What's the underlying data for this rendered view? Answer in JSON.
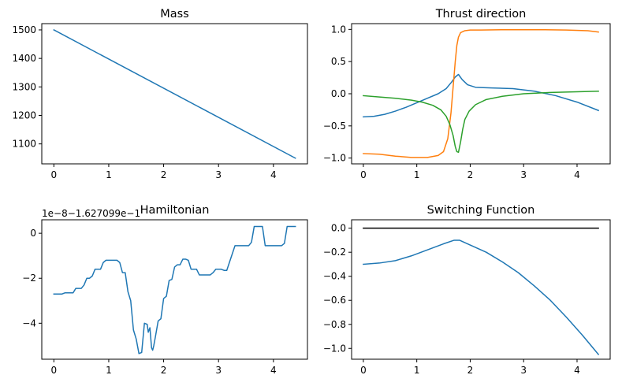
{
  "figure": {
    "background": "#ffffff"
  },
  "chart_data": [
    {
      "id": "mass",
      "type": "line",
      "title": "Mass",
      "xlabel": "",
      "ylabel": "",
      "xlim": [
        -0.22,
        4.62
      ],
      "ylim": [
        1030,
        1522
      ],
      "xticks": [
        0,
        1,
        2,
        3,
        4
      ],
      "xtick_labels": [
        "0",
        "1",
        "2",
        "3",
        "4"
      ],
      "yticks": [
        1100,
        1200,
        1300,
        1400,
        1500
      ],
      "ytick_labels": [
        "1100",
        "1200",
        "1300",
        "1400",
        "1500"
      ],
      "grid": false,
      "series": [
        {
          "color": "#1f77b4",
          "x": [
            0,
            4.4
          ],
          "y": [
            1500,
            1050
          ]
        }
      ]
    },
    {
      "id": "thrust",
      "type": "line",
      "title": "Thrust direction",
      "xlabel": "",
      "ylabel": "",
      "xlim": [
        -0.22,
        4.62
      ],
      "ylim": [
        -1.09,
        1.09
      ],
      "xticks": [
        0,
        1,
        2,
        3,
        4
      ],
      "xtick_labels": [
        "0",
        "1",
        "2",
        "3",
        "4"
      ],
      "yticks": [
        -1.0,
        -0.5,
        0.0,
        0.5,
        1.0
      ],
      "ytick_labels": [
        "−1.0",
        "−0.5",
        "0.0",
        "0.5",
        "1.0"
      ],
      "grid": false,
      "series": [
        {
          "color": "#1f77b4",
          "x": [
            0,
            0.2,
            0.4,
            0.6,
            0.8,
            1.0,
            1.2,
            1.4,
            1.55,
            1.65,
            1.72,
            1.78,
            1.85,
            1.95,
            2.1,
            2.4,
            2.8,
            3.2,
            3.6,
            4.0,
            4.4
          ],
          "y": [
            -0.36,
            -0.35,
            -0.32,
            -0.27,
            -0.21,
            -0.14,
            -0.07,
            0.0,
            0.08,
            0.18,
            0.26,
            0.3,
            0.22,
            0.14,
            0.1,
            0.09,
            0.08,
            0.04,
            -0.03,
            -0.13,
            -0.26
          ]
        },
        {
          "color": "#ff7f0e",
          "x": [
            0,
            0.3,
            0.6,
            0.9,
            1.2,
            1.4,
            1.5,
            1.58,
            1.64,
            1.68,
            1.72,
            1.75,
            1.78,
            1.82,
            1.9,
            2.0,
            2.2,
            2.6,
            3.0,
            3.4,
            3.8,
            4.2,
            4.4
          ],
          "y": [
            -0.93,
            -0.94,
            -0.97,
            -0.99,
            -0.99,
            -0.96,
            -0.9,
            -0.7,
            -0.3,
            0.1,
            0.5,
            0.75,
            0.88,
            0.95,
            0.98,
            0.99,
            0.99,
            0.995,
            0.995,
            0.995,
            0.99,
            0.98,
            0.96
          ]
        },
        {
          "color": "#2ca02c",
          "x": [
            0,
            0.3,
            0.6,
            0.9,
            1.1,
            1.3,
            1.45,
            1.55,
            1.62,
            1.68,
            1.72,
            1.75,
            1.78,
            1.82,
            1.86,
            1.9,
            1.98,
            2.1,
            2.3,
            2.6,
            3.0,
            3.5,
            4.0,
            4.4
          ],
          "y": [
            -0.03,
            -0.05,
            -0.07,
            -0.1,
            -0.13,
            -0.18,
            -0.25,
            -0.35,
            -0.48,
            -0.65,
            -0.82,
            -0.9,
            -0.91,
            -0.75,
            -0.55,
            -0.4,
            -0.27,
            -0.17,
            -0.09,
            -0.04,
            0.0,
            0.02,
            0.03,
            0.04
          ]
        }
      ]
    },
    {
      "id": "hamiltonian",
      "type": "line",
      "title": "Hamiltonian",
      "offset_text": "1e−8−1.627099e−1",
      "xlabel": "",
      "ylabel": "",
      "xlim": [
        -0.22,
        4.62
      ],
      "ylim": [
        -5.6,
        0.6
      ],
      "xticks": [
        0,
        1,
        2,
        3,
        4
      ],
      "xtick_labels": [
        "0",
        "1",
        "2",
        "3",
        "4"
      ],
      "yticks": [
        -4,
        -2,
        0
      ],
      "ytick_labels": [
        "−4",
        "−2",
        "0"
      ],
      "grid": false,
      "series": [
        {
          "color": "#1f77b4",
          "x": [
            0,
            0.15,
            0.2,
            0.35,
            0.4,
            0.5,
            0.55,
            0.6,
            0.65,
            0.7,
            0.75,
            0.85,
            0.9,
            0.95,
            1.15,
            1.2,
            1.25,
            1.3,
            1.35,
            1.4,
            1.45,
            1.5,
            1.55,
            1.6,
            1.65,
            1.7,
            1.72,
            1.75,
            1.78,
            1.8,
            1.82,
            1.85,
            1.9,
            1.95,
            2.0,
            2.05,
            2.1,
            2.15,
            2.2,
            2.25,
            2.3,
            2.35,
            2.4,
            2.45,
            2.5,
            2.6,
            2.65,
            2.7,
            2.85,
            2.9,
            2.95,
            3.05,
            3.1,
            3.15,
            3.3,
            3.35,
            3.4,
            3.55,
            3.6,
            3.65,
            3.8,
            3.85,
            3.9,
            3.95,
            4.1,
            4.15,
            4.2,
            4.25,
            4.35,
            4.4
          ],
          "y": [
            -2.7,
            -2.7,
            -2.65,
            -2.65,
            -2.45,
            -2.45,
            -2.3,
            -2.0,
            -2.0,
            -1.9,
            -1.6,
            -1.6,
            -1.3,
            -1.2,
            -1.2,
            -1.3,
            -1.75,
            -1.75,
            -2.6,
            -3.0,
            -4.3,
            -4.7,
            -5.35,
            -5.3,
            -4.0,
            -4.05,
            -4.4,
            -4.2,
            -5.1,
            -5.2,
            -5.0,
            -4.6,
            -3.9,
            -3.8,
            -2.9,
            -2.8,
            -2.1,
            -2.05,
            -1.5,
            -1.4,
            -1.4,
            -1.15,
            -1.15,
            -1.2,
            -1.6,
            -1.6,
            -1.85,
            -1.85,
            -1.85,
            -1.75,
            -1.6,
            -1.6,
            -1.65,
            -1.65,
            -0.55,
            -0.55,
            -0.55,
            -0.55,
            -0.4,
            0.3,
            0.3,
            -0.55,
            -0.55,
            -0.55,
            -0.55,
            -0.55,
            -0.45,
            0.3,
            0.3,
            0.3
          ]
        }
      ]
    },
    {
      "id": "switching",
      "type": "line",
      "title": "Switching Function",
      "xlabel": "",
      "ylabel": "",
      "xlim": [
        -0.22,
        4.62
      ],
      "ylim": [
        -1.09,
        0.07
      ],
      "xticks": [
        0,
        1,
        2,
        3,
        4
      ],
      "xtick_labels": [
        "0",
        "1",
        "2",
        "3",
        "4"
      ],
      "yticks": [
        -1.0,
        -0.8,
        -0.6,
        -0.4,
        -0.2,
        0.0
      ],
      "ytick_labels": [
        "−1.0",
        "−0.8",
        "−0.6",
        "−0.4",
        "−0.2",
        "0.0"
      ],
      "grid": false,
      "series": [
        {
          "color": "#000000",
          "x": [
            0,
            4.4
          ],
          "y": [
            0,
            0
          ]
        },
        {
          "color": "#1f77b4",
          "x": [
            0,
            0.3,
            0.6,
            0.9,
            1.2,
            1.5,
            1.7,
            1.8,
            2.0,
            2.3,
            2.6,
            2.9,
            3.2,
            3.5,
            3.8,
            4.1,
            4.4
          ],
          "y": [
            -0.3,
            -0.29,
            -0.27,
            -0.23,
            -0.18,
            -0.13,
            -0.1,
            -0.1,
            -0.14,
            -0.2,
            -0.28,
            -0.37,
            -0.48,
            -0.6,
            -0.74,
            -0.89,
            -1.05
          ]
        }
      ]
    }
  ]
}
